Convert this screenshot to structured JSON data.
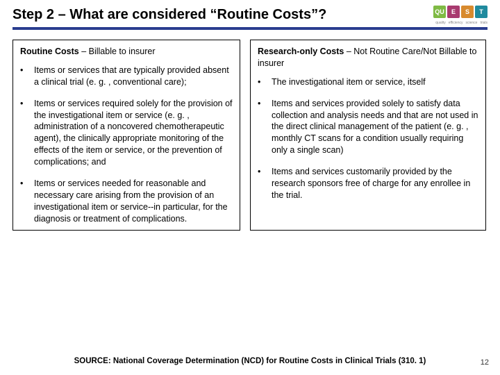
{
  "title": "Step 2 – What are considered “Routine Costs”?",
  "logo": {
    "squares": [
      {
        "text": "QU",
        "bg": "#7fba44"
      },
      {
        "text": "E",
        "bg": "#a83a6f"
      },
      {
        "text": "S",
        "bg": "#d88a2e"
      },
      {
        "text": "T",
        "bg": "#1f8a9e"
      }
    ],
    "tagline": [
      "quality",
      "efficiency",
      "science",
      "trials"
    ]
  },
  "accent_color": "#2a3d8f",
  "left": {
    "header_bold": "Routine Costs",
    "header_rest": " – Billable to insurer",
    "items": [
      "Items or services that are typically provided absent a clinical trial (e. g. , conventional care);",
      "Items or services required solely for the provision of the investigational item or service (e. g. , administration of a noncovered chemotherapeutic agent), the clinically appropriate monitoring of the effects of the item or service, or the prevention of complications; and",
      "Items or services needed for reasonable and necessary care arising from the provision of an investigational item or service--in particular, for the diagnosis or treatment of complications."
    ]
  },
  "right": {
    "header_bold": "Research-only Costs",
    "header_rest": " – Not Routine Care/Not Billable to insurer",
    "items": [
      "The investigational item or service, itself",
      "Items and services provided solely to satisfy data collection and analysis needs and that are not used in the direct clinical management of the patient (e. g. , monthly CT scans for a condition usually requiring only a single scan)",
      "Items and services customarily provided by the research sponsors free of charge for any enrollee in the trial."
    ]
  },
  "source": "SOURCE: National Coverage Determination (NCD) for Routine Costs in Clinical Trials (310. 1)",
  "page_number": "12"
}
